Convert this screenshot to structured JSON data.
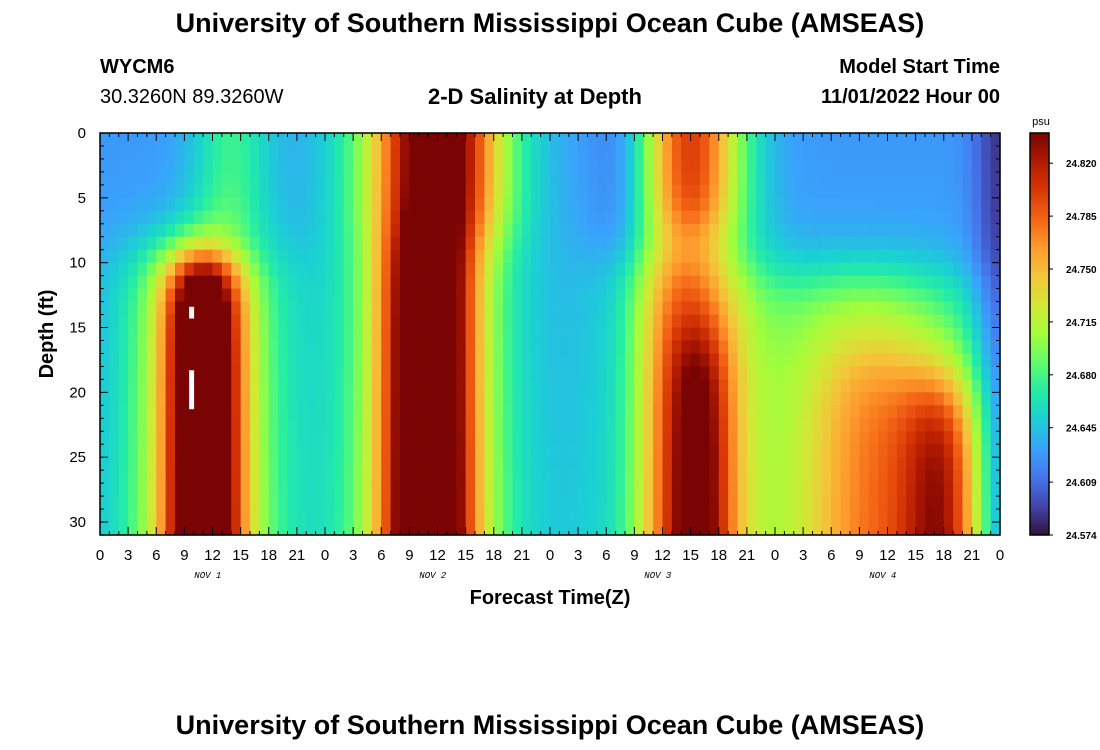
{
  "header": {
    "title": "University of Southern Mississippi Ocean Cube (AMSEAS)",
    "station_id": "WYCM6",
    "coords": "30.3260N  89.3260W",
    "subtitle": "2-D Salinity at Depth",
    "model_start_label": "Model Start Time",
    "model_start_date": "11/01/2022 Hour 00"
  },
  "footer": {
    "title": "University of Southern Mississippi Ocean Cube (AMSEAS)"
  },
  "chart_data": {
    "type": "heatmap",
    "title": "2-D Salinity at Depth",
    "xlabel": "Forecast Time(Z)",
    "ylabel": "Depth (ft)",
    "x_tick_labels": [
      "0",
      "3",
      "6",
      "9",
      "12",
      "15",
      "18",
      "21",
      "0",
      "3",
      "6",
      "9",
      "12",
      "15",
      "18",
      "21",
      "0",
      "3",
      "6",
      "9",
      "12",
      "15",
      "18",
      "21",
      "0",
      "3",
      "6",
      "9",
      "12",
      "15",
      "18",
      "21",
      "0"
    ],
    "x_range_hours": [
      0,
      96
    ],
    "day_labels": [
      "NOV 1",
      "NOV 2",
      "NOV 3",
      "NOV 4"
    ],
    "y_ticks": [
      "0",
      "5",
      "10",
      "15",
      "20",
      "25",
      "30"
    ],
    "y_range_ft": [
      0,
      31
    ],
    "colorbar": {
      "unit": "psu",
      "labels": [
        "24.820",
        "24.785",
        "24.750",
        "24.715",
        "24.680",
        "24.645",
        "24.609",
        "24.574"
      ],
      "range": [
        24.574,
        24.84
      ],
      "colors": [
        "#30123b",
        "#4145ab",
        "#4675ed",
        "#39a2fc",
        "#1bcfd4",
        "#24eca6",
        "#61fc6c",
        "#a4fc3b",
        "#d1e834",
        "#f3c63a",
        "#fe9b2d",
        "#f36315",
        "#d93806",
        "#b11901",
        "#7a0403"
      ]
    }
  }
}
